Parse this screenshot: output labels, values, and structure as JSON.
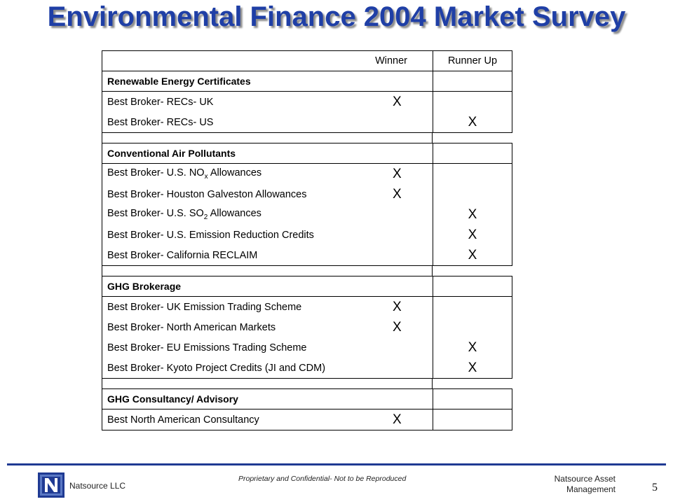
{
  "title": "Environmental Finance 2004 Market Survey",
  "table": {
    "header": {
      "col_winner": "Winner",
      "col_runner_up": "Runner Up"
    },
    "sections": [
      {
        "category": "Renewable Energy Certificates",
        "items": [
          {
            "label": "Best Broker- RECs- UK",
            "winner": "X",
            "runner_up": ""
          },
          {
            "label": "Best Broker- RECs- US",
            "winner": "",
            "runner_up": "X"
          }
        ]
      },
      {
        "category": "Conventional Air Pollutants",
        "items": [
          {
            "label_prefix": "Best Broker- U.S. NO",
            "label_sub": "x",
            "label_suffix": " Allowances",
            "winner": "X",
            "runner_up": ""
          },
          {
            "label": "Best Broker- Houston Galveston Allowances",
            "winner": "X",
            "runner_up": ""
          },
          {
            "label_prefix": "Best Broker- U.S. SO",
            "label_sub": "2",
            "label_suffix": " Allowances",
            "winner": "",
            "runner_up": "X"
          },
          {
            "label": "Best Broker- U.S. Emission Reduction Credits",
            "winner": "",
            "runner_up": "X"
          },
          {
            "label": "Best Broker- California RECLAIM",
            "winner": "",
            "runner_up": "X"
          }
        ]
      },
      {
        "category": "GHG Brokerage",
        "items": [
          {
            "label": "Best Broker- UK Emission Trading Scheme",
            "winner": "X",
            "runner_up": ""
          },
          {
            "label": "Best Broker- North American Markets",
            "winner": "X",
            "runner_up": ""
          },
          {
            "label": "Best Broker- EU Emissions Trading Scheme",
            "winner": "",
            "runner_up": "X"
          },
          {
            "label": "Best Broker- Kyoto Project Credits (JI and CDM)",
            "winner": "",
            "runner_up": "X"
          }
        ]
      },
      {
        "category": "GHG Consultancy/ Advisory",
        "items": [
          {
            "label": "Best North American Consultancy",
            "winner": "X",
            "runner_up": ""
          }
        ]
      }
    ]
  },
  "footer": {
    "company": "Natsource LLC",
    "confidential": "Proprietary and Confidential- Not to be Reproduced",
    "right_line1": "Natsource Asset",
    "right_line2": "Management",
    "page_number": "5"
  },
  "colors": {
    "title": "#1f3fa6",
    "rule": "#1f3a93",
    "logo": "#1f3a93"
  },
  "icons": {
    "logo": "natsource-n-logo-icon"
  }
}
